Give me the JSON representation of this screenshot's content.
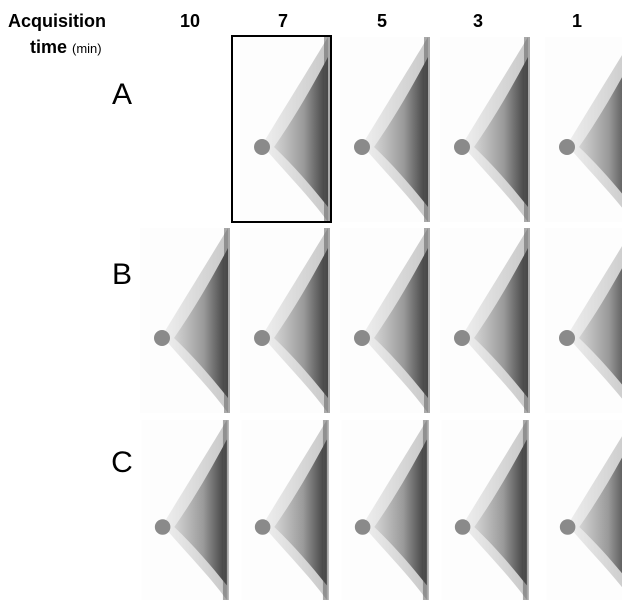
{
  "header": {
    "line1": "Acquisition",
    "line2": "time",
    "unit": "(min)"
  },
  "columns": [
    "10",
    "7",
    "5",
    "3",
    "1"
  ],
  "rows": [
    "A",
    "B",
    "C"
  ]
}
